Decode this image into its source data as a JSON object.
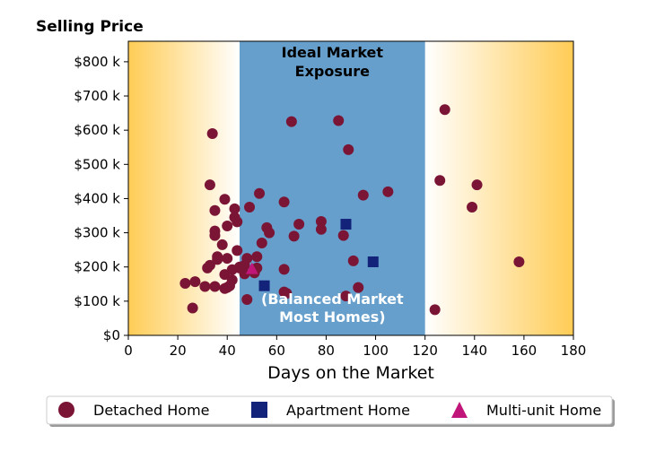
{
  "chart_data": {
    "type": "scatter",
    "title": "Selling Price",
    "xlabel": "Days on the Market",
    "ylabel": "",
    "xlim": [
      0,
      180
    ],
    "ylim": [
      0,
      860
    ],
    "x_ticks": [
      0,
      20,
      40,
      60,
      80,
      100,
      120,
      140,
      160,
      180
    ],
    "y_ticks": [
      0,
      100,
      200,
      300,
      400,
      500,
      600,
      700,
      800
    ],
    "y_tick_labels": [
      "$0",
      "$100 k",
      "$200 k",
      "$300 k",
      "$400 k",
      "$500 k",
      "$600 k",
      "$700 k",
      "$800 k"
    ],
    "grid": false,
    "band": {
      "x_start": 45,
      "x_end": 120,
      "color": "#669fcb",
      "label_top": [
        "Ideal Market",
        "Exposure"
      ],
      "label_bottom": [
        "(Balanced Market",
        "Most Homes)"
      ]
    },
    "edge_gradient_color": "#ffcc55",
    "legend_position": "bottom",
    "series": [
      {
        "name": "Detached Home",
        "marker": "circle",
        "color": "#7b1535",
        "points": [
          [
            23,
            152
          ],
          [
            26,
            80
          ],
          [
            27,
            157
          ],
          [
            31,
            143
          ],
          [
            32,
            197
          ],
          [
            33,
            440
          ],
          [
            33,
            205
          ],
          [
            34,
            590
          ],
          [
            35,
            305
          ],
          [
            35,
            292
          ],
          [
            35,
            365
          ],
          [
            35,
            143
          ],
          [
            36,
            230
          ],
          [
            36,
            222
          ],
          [
            38,
            265
          ],
          [
            39,
            398
          ],
          [
            39,
            178
          ],
          [
            39,
            137
          ],
          [
            40,
            320
          ],
          [
            40,
            225
          ],
          [
            40,
            140
          ],
          [
            41,
            145
          ],
          [
            42,
            162
          ],
          [
            42,
            192
          ],
          [
            43,
            370
          ],
          [
            43,
            345
          ],
          [
            44,
            332
          ],
          [
            44,
            248
          ],
          [
            45,
            200
          ],
          [
            45,
            197
          ],
          [
            47,
            205
          ],
          [
            47,
            180
          ],
          [
            48,
            105
          ],
          [
            48,
            225
          ],
          [
            49,
            375
          ],
          [
            51,
            183
          ],
          [
            52,
            230
          ],
          [
            52,
            197
          ],
          [
            53,
            415
          ],
          [
            54,
            270
          ],
          [
            56,
            315
          ],
          [
            57,
            300
          ],
          [
            63,
            390
          ],
          [
            63,
            193
          ],
          [
            63,
            127
          ],
          [
            64,
            123
          ],
          [
            66,
            625
          ],
          [
            67,
            290
          ],
          [
            69,
            325
          ],
          [
            78,
            333
          ],
          [
            78,
            310
          ],
          [
            85,
            628
          ],
          [
            87,
            292
          ],
          [
            88,
            115
          ],
          [
            89,
            543
          ],
          [
            91,
            218
          ],
          [
            93,
            140
          ],
          [
            95,
            410
          ],
          [
            105,
            420
          ],
          [
            124,
            75
          ],
          [
            126,
            453
          ],
          [
            128,
            660
          ],
          [
            139,
            375
          ],
          [
            141,
            440
          ],
          [
            158,
            215
          ]
        ]
      },
      {
        "name": "Apartment Home",
        "marker": "square",
        "color": "#13237a",
        "points": [
          [
            55,
            145
          ],
          [
            88,
            325
          ],
          [
            99,
            215
          ]
        ]
      },
      {
        "name": "Multi-unit Home",
        "marker": "triangle",
        "color": "#c0167a",
        "points": [
          [
            50,
            195
          ]
        ]
      }
    ]
  }
}
